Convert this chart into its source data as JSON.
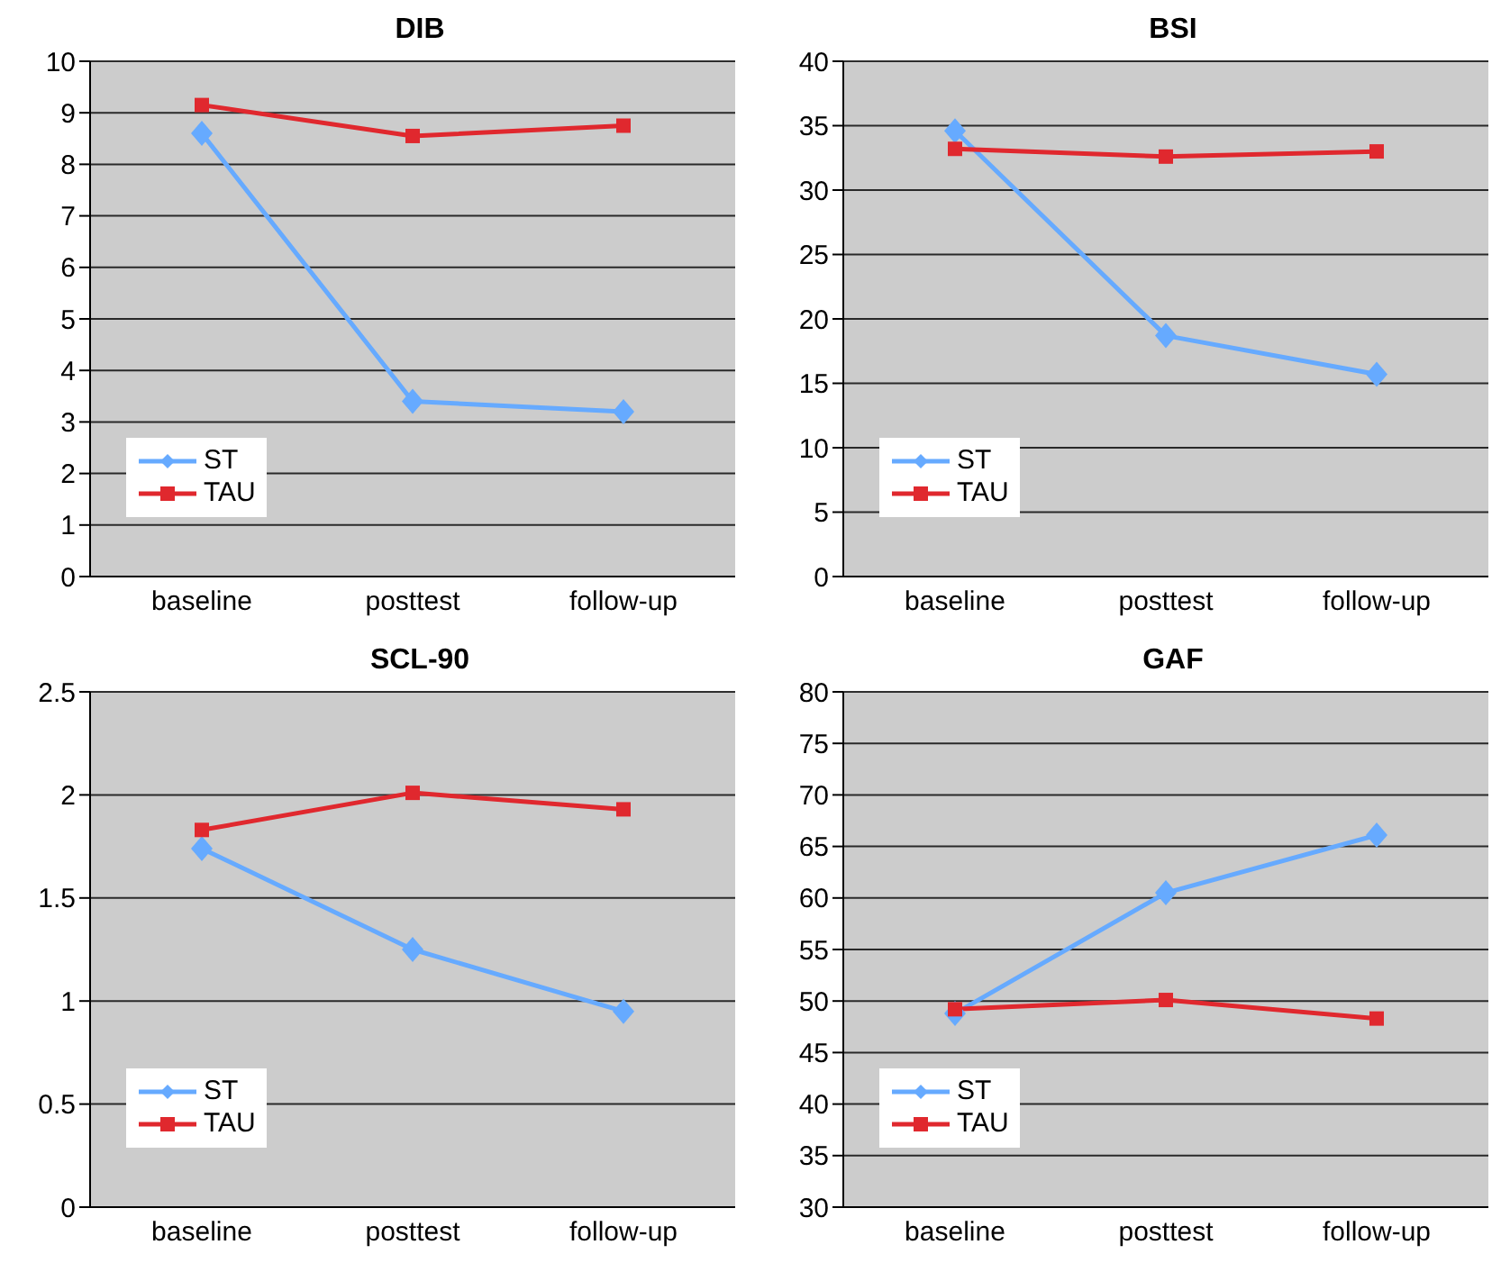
{
  "chart_data": [
    {
      "type": "line",
      "title": "DIB",
      "categories": [
        "baseline",
        "posttest",
        "follow-up"
      ],
      "ylim": [
        0,
        10
      ],
      "yticks": [
        0,
        1,
        2,
        3,
        4,
        5,
        6,
        7,
        8,
        9,
        10
      ],
      "grid": "y",
      "legend": "bottom left",
      "series": [
        {
          "name": "ST",
          "color": "#66aaff",
          "marker": "diamond",
          "values": [
            8.6,
            3.4,
            3.2
          ]
        },
        {
          "name": "TAU",
          "color": "#e0282e",
          "marker": "square",
          "values": [
            9.15,
            8.55,
            8.75
          ]
        }
      ]
    },
    {
      "type": "line",
      "title": "BSI",
      "categories": [
        "baseline",
        "posttest",
        "follow-up"
      ],
      "ylim": [
        0,
        40
      ],
      "yticks": [
        0,
        5,
        10,
        15,
        20,
        25,
        30,
        35,
        40
      ],
      "grid": "y",
      "legend": "bottom left",
      "series": [
        {
          "name": "ST",
          "color": "#66aaff",
          "marker": "diamond",
          "values": [
            34.6,
            18.7,
            15.7
          ]
        },
        {
          "name": "TAU",
          "color": "#e0282e",
          "marker": "square",
          "values": [
            33.2,
            32.6,
            33.0
          ]
        }
      ]
    },
    {
      "type": "line",
      "title": "SCL-90",
      "categories": [
        "baseline",
        "posttest",
        "follow-up"
      ],
      "ylim": [
        0,
        2.5
      ],
      "yticks": [
        0,
        0.5,
        1,
        1.5,
        2,
        2.5
      ],
      "grid": "y",
      "legend": "bottom left",
      "series": [
        {
          "name": "ST",
          "color": "#66aaff",
          "marker": "diamond",
          "values": [
            1.74,
            1.25,
            0.95
          ]
        },
        {
          "name": "TAU",
          "color": "#e0282e",
          "marker": "square",
          "values": [
            1.83,
            2.01,
            1.93
          ]
        }
      ]
    },
    {
      "type": "line",
      "title": "GAF",
      "categories": [
        "baseline",
        "posttest",
        "follow-up"
      ],
      "ylim": [
        30,
        80
      ],
      "yticks": [
        30,
        35,
        40,
        45,
        50,
        55,
        60,
        65,
        70,
        75,
        80
      ],
      "grid": "y",
      "legend": "bottom left",
      "series": [
        {
          "name": "ST",
          "color": "#66aaff",
          "marker": "diamond",
          "values": [
            48.8,
            60.5,
            66.1
          ]
        },
        {
          "name": "TAU",
          "color": "#e0282e",
          "marker": "square",
          "values": [
            49.2,
            50.1,
            48.3
          ]
        }
      ]
    }
  ]
}
